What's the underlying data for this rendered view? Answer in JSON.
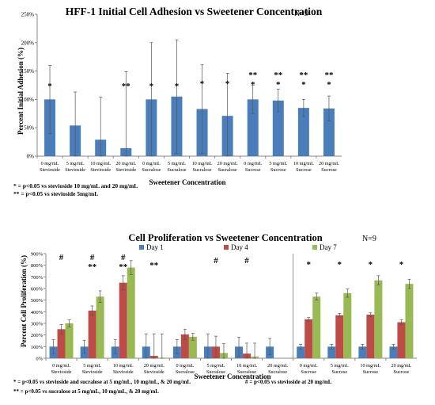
{
  "chart_data": [
    {
      "type": "bar",
      "title": "HFF-1 Initial Cell Adhesion vs Sweetener Concentration",
      "n_label": "N=9",
      "xlabel": "Sweetener Concentration",
      "ylabel": "Percent Initial Adhesion (%)",
      "ylim": [
        0,
        250
      ],
      "yticks": [
        0,
        50,
        100,
        150,
        200,
        250
      ],
      "ytick_labels": [
        "0%",
        "50%",
        "100%",
        "150%",
        "200%",
        "250%"
      ],
      "grid": false,
      "color": "#4a7ebb",
      "categories": [
        [
          "0 mg/mL",
          "Stevioside"
        ],
        [
          "5 mg/mL",
          "Stevioside"
        ],
        [
          "10 mg/mL",
          "Stevioside"
        ],
        [
          "20 mg/mL",
          "Stevioside"
        ],
        [
          "0 mg/mL",
          "Sucralose"
        ],
        [
          "5 mg/mL",
          "Sucralose"
        ],
        [
          "10 mg/mL",
          "Sucralose"
        ],
        [
          "20 mg/mL",
          "Sucralose"
        ],
        [
          "0 mg/mL",
          "Sucrose"
        ],
        [
          "5 mg/mL",
          "Sucrose"
        ],
        [
          "10 mg/mL",
          "Sucrose"
        ],
        [
          "20 mg/mL",
          "Sucrose"
        ]
      ],
      "values": [
        100,
        54,
        29,
        14,
        100,
        105,
        83,
        71,
        100,
        98,
        85,
        84
      ],
      "errors": [
        60,
        59,
        75,
        135,
        100,
        100,
        78,
        75,
        25,
        20,
        15,
        22
      ],
      "annotations": [
        "*",
        "",
        "",
        "**",
        "*",
        "*",
        "*",
        "*",
        "**\n*",
        "**\n*",
        "**\n*",
        "**\n*"
      ],
      "footnotes": [
        "* = p<0.05 vs stevioside 10 mg/mL and 20 mg/mL",
        "** = p<0.05 vs stevioside 5mg/mL"
      ]
    },
    {
      "type": "bar",
      "title": "Cell Proliferation vs Sweetener Concentration",
      "n_label": "N=9",
      "xlabel": "Sweetener Concentration",
      "ylabel": "Percent Cell Proliferation (%)",
      "ylim": [
        0,
        900
      ],
      "yticks": [
        0,
        100,
        200,
        300,
        400,
        500,
        600,
        700,
        800,
        900
      ],
      "ytick_labels": [
        "0%",
        "100%",
        "200%",
        "300%",
        "400%",
        "500%",
        "600%",
        "700%",
        "800%",
        "900%"
      ],
      "grid": false,
      "legend": "top",
      "categories": [
        [
          "0 mg/mL",
          "Stevioside"
        ],
        [
          "5 mg/mL",
          "Stevioside"
        ],
        [
          "10 mg/mL",
          "Stevioside"
        ],
        [
          "20 mg/mL",
          "Stevioside"
        ],
        [
          "0 mg/mL",
          "Sucralose"
        ],
        [
          "5 mg/mL",
          "Sucralose"
        ],
        [
          "10 mg/mL",
          "Sucralose"
        ],
        [
          "20 mg/mL",
          "Sucralose"
        ],
        [
          "0 mg/mL",
          "Sucrose"
        ],
        [
          "5 mg/mL",
          "Sucrose"
        ],
        [
          "10 mg/mL",
          "Sucrose"
        ],
        [
          "20 mg/mL",
          "Sucrose"
        ]
      ],
      "series": [
        {
          "name": "Day 1",
          "color": "#4a7ebb",
          "values": [
            100,
            100,
            100,
            100,
            100,
            100,
            100,
            100,
            100,
            100,
            100,
            100
          ],
          "errors": [
            60,
            55,
            60,
            110,
            60,
            110,
            80,
            70,
            20,
            20,
            20,
            20
          ]
        },
        {
          "name": "Day 4",
          "color": "#be4b48",
          "values": [
            250,
            410,
            650,
            20,
            205,
            100,
            40,
            0,
            335,
            370,
            375,
            310
          ],
          "errors": [
            40,
            40,
            60,
            190,
            45,
            90,
            90,
            0,
            15,
            15,
            15,
            20
          ]
        },
        {
          "name": "Day 7",
          "color": "#98b954",
          "values": [
            300,
            530,
            780,
            5,
            185,
            45,
            15,
            0,
            530,
            560,
            670,
            640
          ],
          "errors": [
            30,
            50,
            60,
            205,
            30,
            80,
            115,
            0,
            30,
            35,
            40,
            40
          ]
        }
      ],
      "annotations": [
        "#",
        "#\n**",
        "#\n**",
        "**",
        "",
        "#",
        "#",
        "",
        "*",
        "*",
        "*",
        "*"
      ],
      "footnotes": [
        "* = p<0.05 vs stevioside and sucralose at 5 mg/mL, 10 mg/mL, & 20 mg/mL",
        "** = p<0.05 vs sucralose at 5 mg/mL, 10 mg/mL, & 20 mg/mL",
        "# = p<0.05 vs stevioside at 20 mg/mL"
      ]
    }
  ]
}
